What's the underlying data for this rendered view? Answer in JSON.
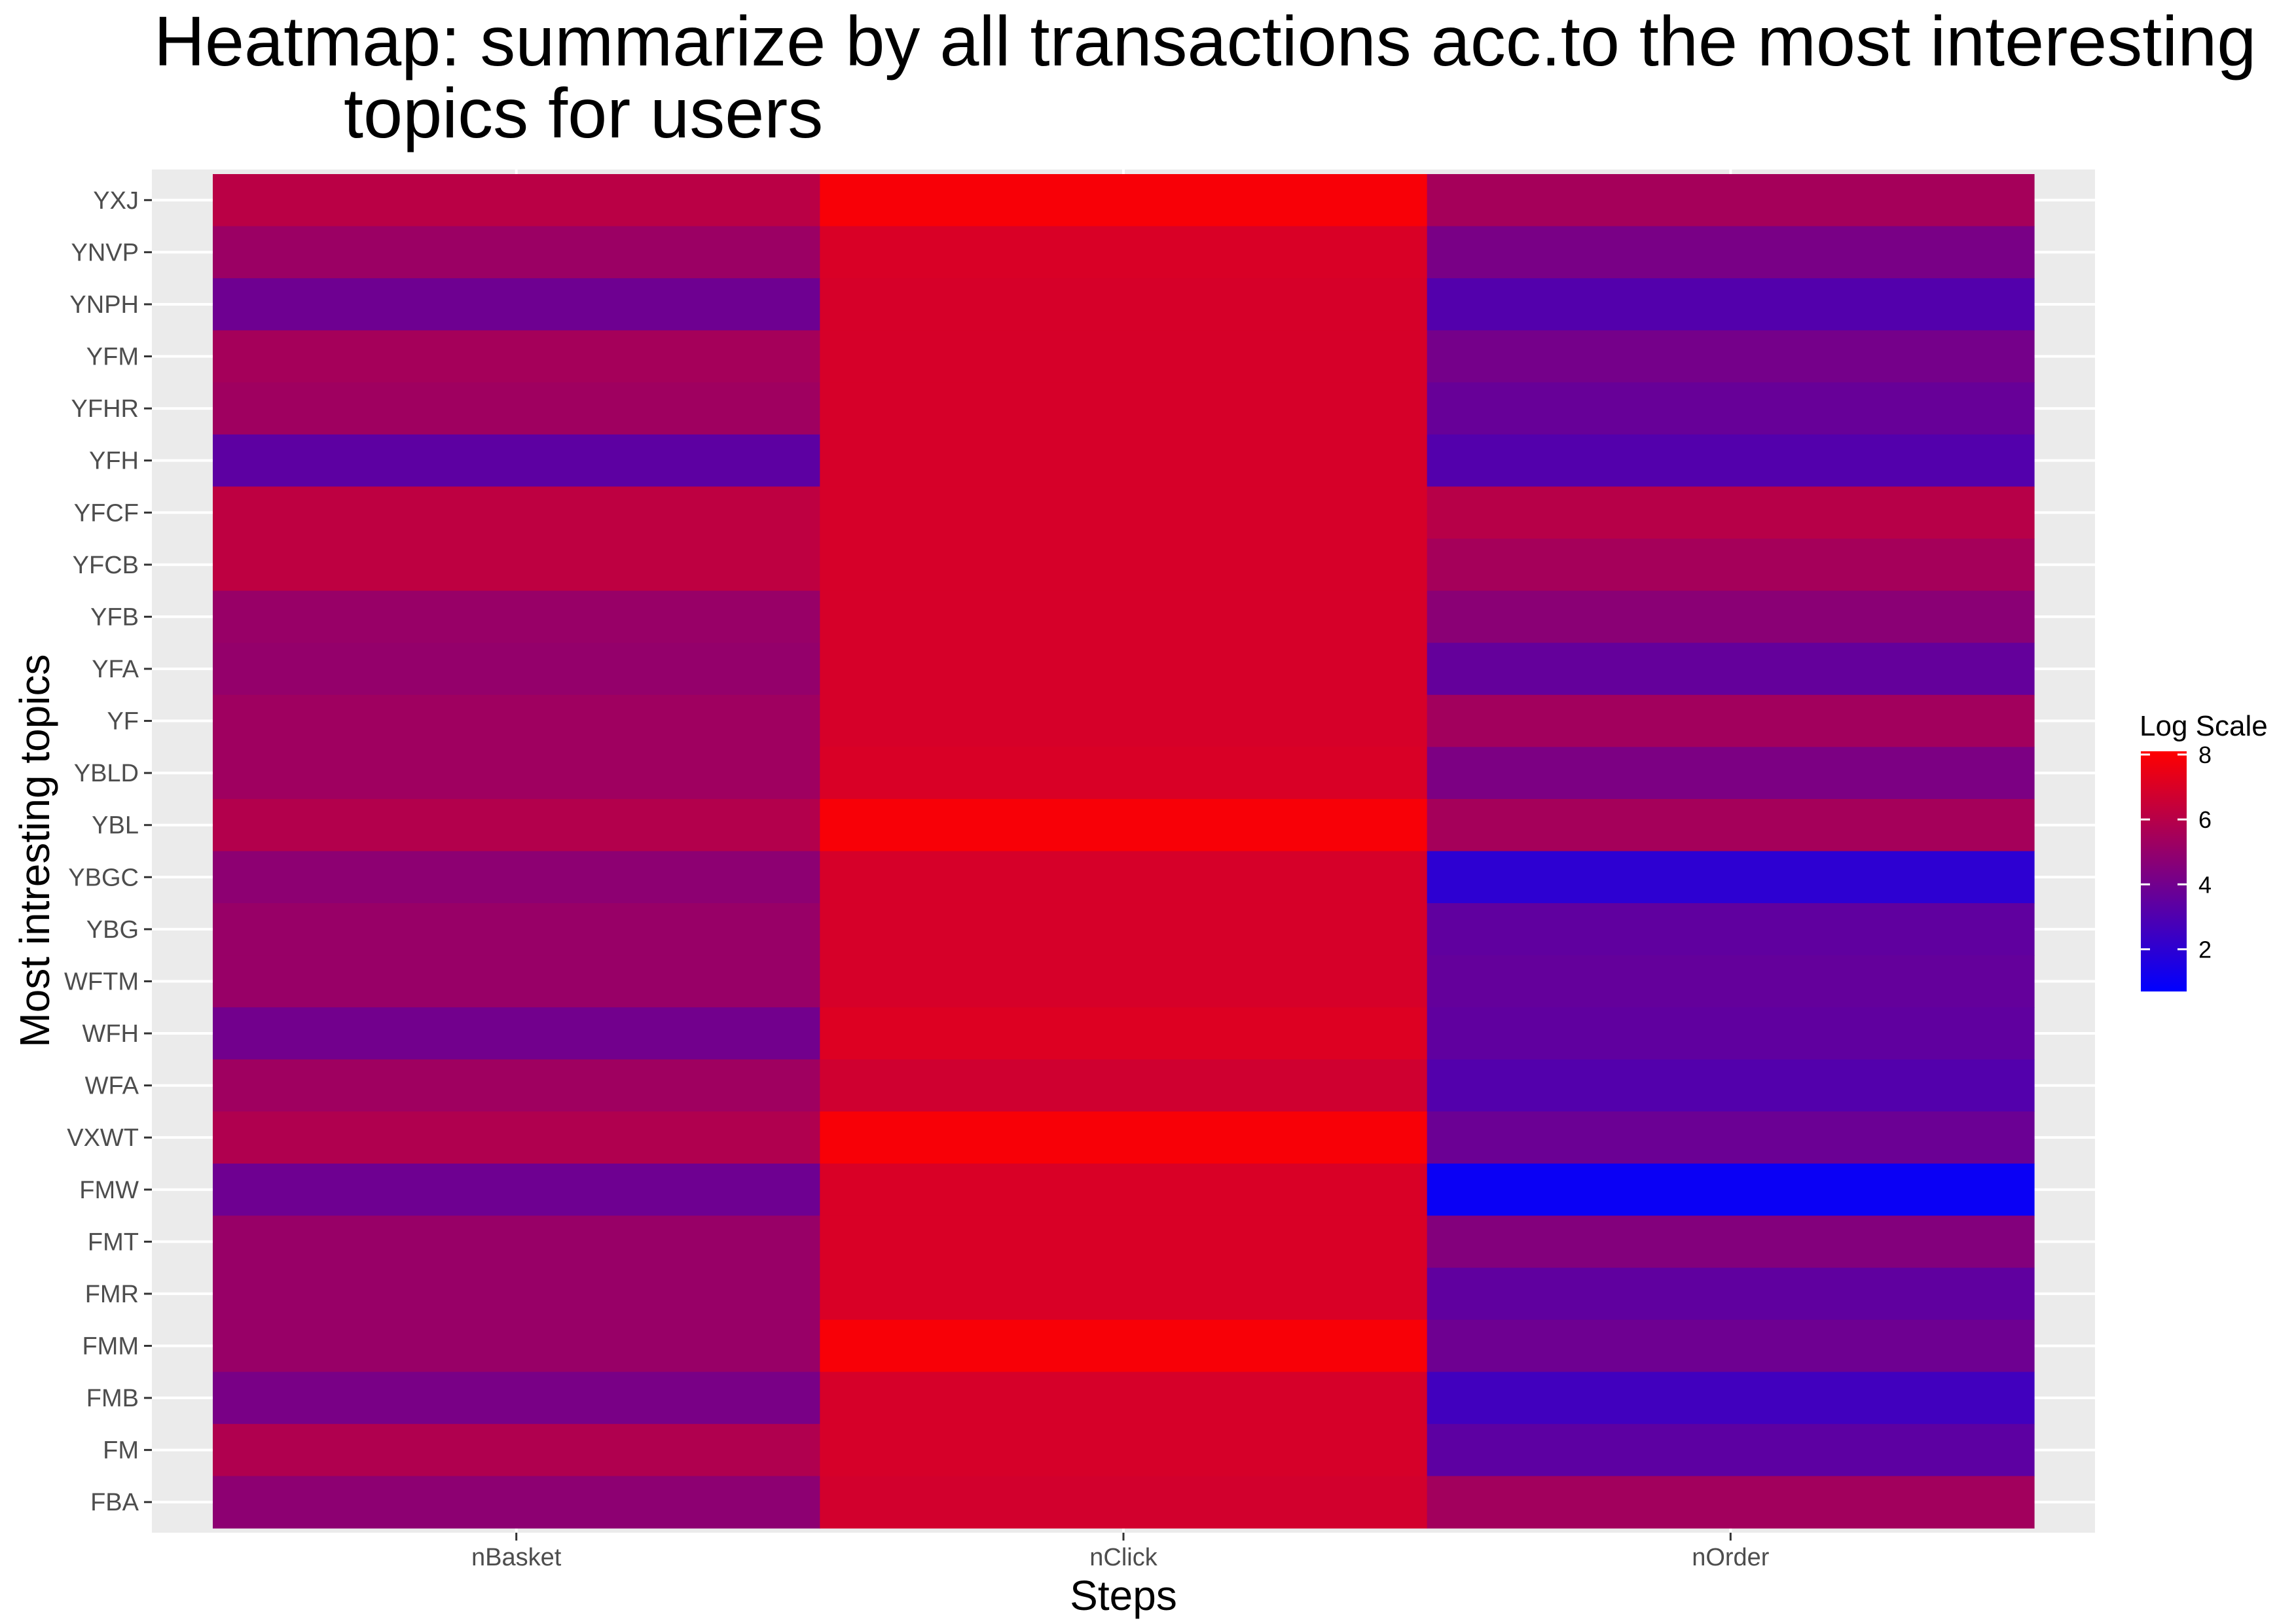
{
  "chart_data": {
    "type": "heatmap",
    "title_lines": [
      "Heatmap: summarize by all transactions acc.to the most interesting",
      "topics for users"
    ],
    "xlabel": "Steps",
    "ylabel": "Most intresting topics",
    "x_categories": [
      "nBasket",
      "nClick",
      "nOrder"
    ],
    "y_categories": [
      "YXJ",
      "YNVP",
      "YNPH",
      "YFM",
      "YFHR",
      "YFH",
      "YFCF",
      "YFCB",
      "YFB",
      "YFA",
      "YF",
      "YBLD",
      "YBL",
      "YBGC",
      "YBG",
      "WFTM",
      "WFH",
      "WFA",
      "VXWT",
      "FMW",
      "FMT",
      "FMR",
      "FMM",
      "FMB",
      "FM",
      "FBA"
    ],
    "values": [
      [
        6.1,
        7.9,
        5.5
      ],
      [
        5.2,
        7.0,
        4.2
      ],
      [
        3.9,
        6.9,
        3.1
      ],
      [
        5.5,
        6.9,
        4.1
      ],
      [
        5.3,
        6.9,
        3.7
      ],
      [
        3.4,
        6.9,
        3.1
      ],
      [
        6.2,
        6.9,
        6.0
      ],
      [
        6.2,
        6.9,
        5.5
      ],
      [
        5.1,
        6.9,
        4.7
      ],
      [
        5.0,
        6.9,
        3.6
      ],
      [
        5.3,
        6.9,
        5.4
      ],
      [
        5.3,
        7.0,
        4.3
      ],
      [
        5.9,
        7.9,
        5.5
      ],
      [
        4.8,
        6.9,
        2.0
      ],
      [
        5.1,
        6.9,
        3.5
      ],
      [
        5.1,
        6.9,
        3.6
      ],
      [
        4.0,
        7.1,
        3.5
      ],
      [
        5.3,
        6.7,
        3.1
      ],
      [
        5.8,
        7.9,
        3.8
      ],
      [
        3.9,
        7.0,
        1.0
      ],
      [
        5.1,
        7.0,
        4.5
      ],
      [
        5.1,
        7.0,
        3.5
      ],
      [
        5.1,
        7.9,
        3.9
      ],
      [
        4.2,
        6.9,
        2.6
      ],
      [
        5.8,
        6.9,
        3.4
      ],
      [
        4.8,
        6.8,
        5.4
      ]
    ],
    "color_scale": {
      "title": "Log Scale",
      "low_color": "#0000ff",
      "high_color": "#ff0000",
      "domain": [
        0.7,
        8.1
      ],
      "ticks": [
        "2",
        "4",
        "6",
        "8"
      ],
      "tick_values": [
        2,
        4,
        6,
        8
      ]
    },
    "panel_background": "#ebebeb",
    "grid": true,
    "legend_position": "right"
  }
}
